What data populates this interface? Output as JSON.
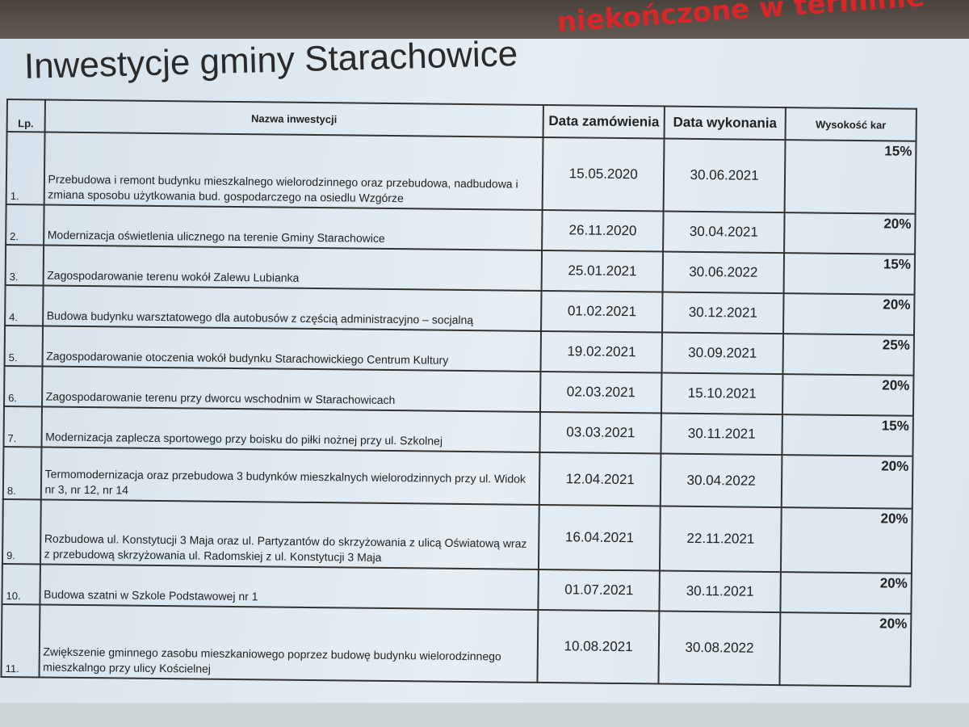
{
  "title": "Inwestycje gminy Starachowice",
  "handwritten_note": "niekończone w terminie",
  "table": {
    "headers": {
      "lp": "Lp.",
      "name": "Nazwa inwestycji",
      "order_date": "Data zamówienia",
      "completion_date": "Data wykonania",
      "penalty": "Wysokość kar"
    },
    "rows": [
      {
        "lp": "1.",
        "name": "Przebudowa i remont budynku mieszkalnego wielorodzinnego oraz przebudowa, nadbudowa i zmiana sposobu użytkowania bud. gospodarczego na osiedlu Wzgórze",
        "order_date": "15.05.2020",
        "completion_date": "30.06.2021",
        "penalty": "15%"
      },
      {
        "lp": "2.",
        "name": "Modernizacja oświetlenia ulicznego na terenie Gminy Starachowice",
        "order_date": "26.11.2020",
        "completion_date": "30.04.2021",
        "penalty": "20%"
      },
      {
        "lp": "3.",
        "name": "Zagospodarowanie terenu wokół Zalewu Lubianka",
        "order_date": "25.01.2021",
        "completion_date": "30.06.2022",
        "penalty": "15%"
      },
      {
        "lp": "4.",
        "name": "Budowa budynku warsztatowego dla autobusów z częścią administracyjno – socjalną",
        "order_date": "01.02.2021",
        "completion_date": "30.12.2021",
        "penalty": "20%"
      },
      {
        "lp": "5.",
        "name": "Zagospodarowanie otoczenia wokół budynku Starachowickiego Centrum Kultury",
        "order_date": "19.02.2021",
        "completion_date": "30.09.2021",
        "penalty": "25%"
      },
      {
        "lp": "6.",
        "name": "Zagospodarowanie terenu przy dworcu wschodnim w Starachowicach",
        "order_date": "02.03.2021",
        "completion_date": "15.10.2021",
        "penalty": "20%"
      },
      {
        "lp": "7.",
        "name": "Modernizacja zaplecza sportowego przy boisku do piłki nożnej przy ul. Szkolnej",
        "order_date": "03.03.2021",
        "completion_date": "30.11.2021",
        "penalty": "15%"
      },
      {
        "lp": "8.",
        "name": "Termomodernizacja oraz przebudowa 3 budynków mieszkalnych wielorodzinnych przy ul. Widok nr 3, nr 12, nr 14",
        "order_date": "12.04.2021",
        "completion_date": "30.04.2022",
        "penalty": "20%"
      },
      {
        "lp": "9.",
        "name": "Rozbudowa ul. Konstytucji 3 Maja oraz ul. Partyzantów do skrzyżowania z ulicą Oświatową wraz z przebudową skrzyżowania ul. Radomskiej z ul. Konstytucji 3 Maja",
        "order_date": "16.04.2021",
        "completion_date": "22.11.2021",
        "penalty": "20%"
      },
      {
        "lp": "10.",
        "name": "Budowa szatni w Szkole Podstawowej nr 1",
        "order_date": "01.07.2021",
        "completion_date": "30.11.2021",
        "penalty": "20%"
      },
      {
        "lp": "11.",
        "name": "Zwiększenie gminnego zasobu mieszkaniowego poprzez budowę budynku wielorodzinnego mieszkalngo przy ulicy Kościelnej",
        "order_date": "10.08.2021",
        "completion_date": "30.08.2022",
        "penalty": "20%"
      }
    ]
  }
}
